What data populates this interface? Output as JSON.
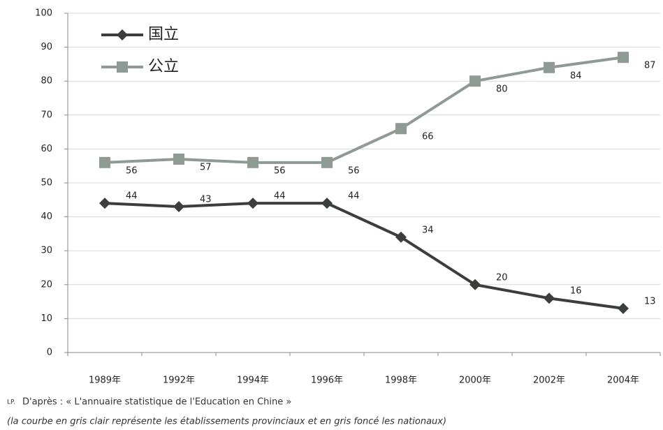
{
  "chart_data": {
    "type": "line",
    "categories": [
      "1989年",
      "1992年",
      "1994年",
      "1996年",
      "1998年",
      "2000年",
      "2002年",
      "2004年"
    ],
    "series": [
      {
        "name": "国立",
        "color": "#3b3e3b",
        "marker": "diamond",
        "values": [
          44,
          43,
          44,
          44,
          34,
          20,
          16,
          13
        ]
      },
      {
        "name": "公立",
        "color": "#909a94",
        "marker": "square",
        "values": [
          56,
          57,
          56,
          56,
          66,
          80,
          84,
          87
        ]
      }
    ],
    "ylim": [
      0,
      100
    ],
    "yticks": [
      0,
      10,
      20,
      30,
      40,
      50,
      60,
      70,
      80,
      90,
      100
    ],
    "grid": true,
    "legend": "top-left",
    "source_prefix": "LP.",
    "source": "D'après : « L'annuaire statistique de l'Education en Chine »",
    "note": "(la courbe en gris clair représente les établissements provinciaux et en gris foncé les nationaux)"
  }
}
